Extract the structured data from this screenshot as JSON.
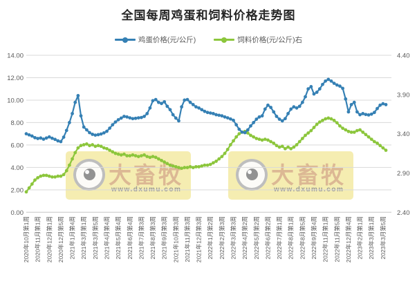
{
  "title": "全国每周鸡蛋和饲料价格走势图",
  "watermark": {
    "brand": "大畜牧",
    "url": "www.dxumu.com"
  },
  "colors": {
    "egg_series": "#3580B4",
    "feed_series": "#8CC63C",
    "gridline": "#D9D9D9",
    "axis_text": "#595959",
    "title_text": "#262626",
    "watermark_bg": "#F2E89E"
  },
  "chart_data": {
    "type": "line",
    "title": "全国每周鸡蛋和饲料价格走势图",
    "grid": true,
    "legend_position": "top",
    "x_tick_every": 4,
    "x_tick_labels": [
      "2020年10月第1周",
      "2020年11月第1周",
      "2020年12月第1周",
      "2020年12月第5周",
      "2021年1月第4周",
      "2021年3月第1周",
      "2021年3月第5周",
      "2021年4月第4周",
      "2021年5月第4周",
      "2021年6月第4周",
      "2021年7月第3周",
      "2021年8月第3周",
      "2021年9月第3周",
      "2021年10月第3周",
      "2021年11月第3周",
      "2021年12月第3周",
      "2022年1月第2周",
      "2022年2月第3周",
      "2022年3月第3周",
      "2022年4月第2周",
      "2022年5月第2周",
      "2022年6月第2周",
      "2022年7月第1周",
      "2022年8月第1周",
      "2022年8月第5周",
      "2022年9月第4周",
      "2022年11月第1周",
      "2022年11月第5周",
      "2022年12月第4周",
      "2023年2月第1周",
      "2023年3月第1周",
      "2023年3月第5周"
    ],
    "left_axis": {
      "min": 0,
      "max": 14,
      "tick_labels": [
        "0.00",
        "2.00",
        "4.00",
        "6.00",
        "8.00",
        "10.00",
        "12.00",
        "14.00"
      ]
    },
    "right_axis": {
      "min": 2.4,
      "max": 4.4,
      "tick_labels": [
        "2.40",
        "2.90",
        "3.40",
        "3.90",
        "4.40"
      ]
    },
    "series": [
      {
        "name": "鸡蛋价格(元/公斤)",
        "axis": "left",
        "color": "#3580B4",
        "values": [
          7.0,
          6.9,
          6.8,
          6.65,
          6.58,
          6.62,
          6.52,
          6.62,
          6.72,
          6.6,
          6.5,
          6.37,
          6.3,
          6.7,
          7.3,
          8.0,
          8.8,
          9.8,
          10.4,
          8.6,
          7.6,
          7.35,
          7.1,
          6.95,
          6.88,
          6.92,
          6.98,
          7.08,
          7.22,
          7.5,
          7.8,
          8.05,
          8.25,
          8.4,
          8.55,
          8.5,
          8.42,
          8.35,
          8.38,
          8.42,
          8.45,
          8.55,
          8.8,
          9.3,
          9.95,
          10.05,
          9.8,
          9.7,
          9.85,
          9.45,
          9.15,
          8.7,
          8.4,
          8.15,
          9.4,
          10.0,
          10.05,
          9.8,
          9.6,
          9.4,
          9.3,
          9.15,
          9.0,
          8.9,
          8.85,
          8.8,
          8.7,
          8.65,
          8.6,
          8.5,
          8.42,
          8.32,
          8.2,
          7.8,
          7.4,
          7.15,
          7.1,
          7.35,
          7.7,
          8.0,
          8.3,
          8.5,
          8.6,
          9.2,
          9.55,
          9.35,
          8.95,
          8.55,
          8.3,
          8.15,
          8.35,
          8.8,
          9.2,
          9.4,
          9.3,
          9.45,
          9.8,
          10.3,
          11.0,
          11.2,
          10.55,
          10.7,
          11.0,
          11.4,
          11.7,
          11.85,
          11.7,
          11.5,
          11.35,
          11.25,
          11.05,
          10.1,
          8.95,
          9.6,
          9.8,
          8.95,
          8.7,
          8.8,
          8.72,
          8.68,
          8.75,
          8.9,
          9.25,
          9.55,
          9.68,
          9.6
        ]
      },
      {
        "name": "饲料价格(元/公斤)右",
        "axis": "right",
        "color": "#8CC63C",
        "values": [
          2.66,
          2.71,
          2.76,
          2.81,
          2.84,
          2.86,
          2.87,
          2.87,
          2.86,
          2.85,
          2.85,
          2.86,
          2.86,
          2.88,
          2.93,
          3.0,
          3.08,
          3.16,
          3.22,
          3.25,
          3.26,
          3.27,
          3.25,
          3.26,
          3.24,
          3.25,
          3.24,
          3.22,
          3.21,
          3.19,
          3.17,
          3.15,
          3.14,
          3.13,
          3.14,
          3.12,
          3.12,
          3.13,
          3.12,
          3.11,
          3.12,
          3.13,
          3.11,
          3.1,
          3.11,
          3.1,
          3.08,
          3.06,
          3.04,
          3.02,
          3.0,
          2.99,
          2.98,
          2.97,
          2.96,
          2.97,
          2.97,
          2.98,
          2.97,
          2.98,
          2.98,
          2.99,
          3.0,
          3.0,
          3.01,
          3.03,
          3.05,
          3.08,
          3.11,
          3.15,
          3.2,
          3.26,
          3.31,
          3.36,
          3.4,
          3.42,
          3.43,
          3.41,
          3.38,
          3.36,
          3.34,
          3.33,
          3.32,
          3.33,
          3.32,
          3.3,
          3.28,
          3.25,
          3.23,
          3.24,
          3.21,
          3.23,
          3.21,
          3.23,
          3.26,
          3.3,
          3.34,
          3.38,
          3.41,
          3.44,
          3.48,
          3.52,
          3.55,
          3.57,
          3.59,
          3.6,
          3.59,
          3.57,
          3.54,
          3.5,
          3.47,
          3.45,
          3.43,
          3.42,
          3.42,
          3.44,
          3.45,
          3.42,
          3.39,
          3.36,
          3.33,
          3.3,
          3.28,
          3.25,
          3.22,
          3.19
        ]
      }
    ]
  }
}
